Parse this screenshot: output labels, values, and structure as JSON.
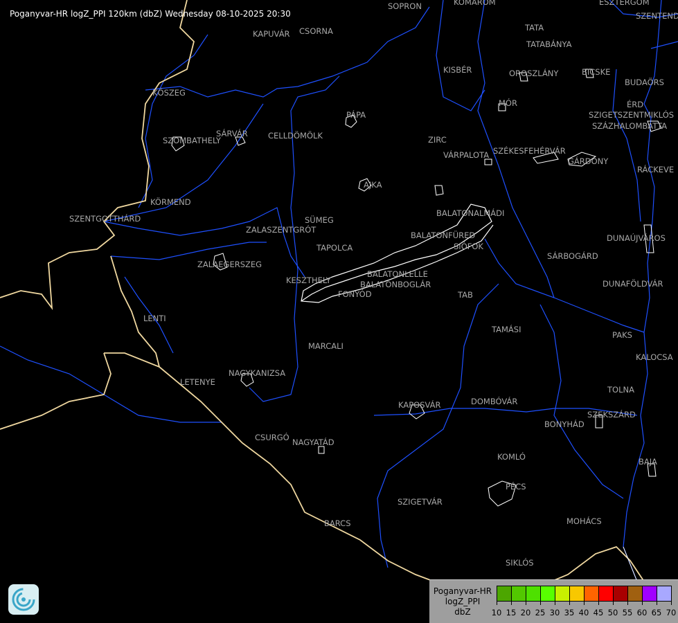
{
  "title": "Poganyvar-HR logZ_PPI 120km (dbZ) Wednesday 08-10-2025 20:30",
  "colors": {
    "background": "#000000",
    "river": "#1e50ff",
    "border": "#f0d8a0",
    "lake": "#ffffff",
    "town_label": "#a8a8a8",
    "town_outline": "#ffffff"
  },
  "towns": [
    "SOPRON",
    "KOMÁROM",
    "ESZTERGOM",
    "SZENTENDRE",
    "TATA",
    "TATABÁNYA",
    "KISBÉR",
    "OROSZLÁNY",
    "BICSKE",
    "BUDAÖRS",
    "KŐSZEG",
    "MÓR",
    "ÉRD",
    "SZIGETSZENTMIKLÓS",
    "SZÁZHALOMBATTA",
    "PÁPA",
    "KAPUVÁR",
    "CSORNA",
    "SÁRVÁR",
    "SZOMBATHELY",
    "CELLDÖMÖLK",
    "ZIRC",
    "VÁRPALOTA",
    "SZÉKESFEHÉRVÁR",
    "GÁRDONY",
    "RÁCKEVE",
    "AJKA",
    "KÖRMEND",
    "BALATONALMÁDI",
    "SZENTGOTTHÁRD",
    "SÜMEG",
    "ZALASZENTGRÓT",
    "BALATONFÜRED",
    "SIÓFOK",
    "DUNAÚJVÁROS",
    "TAPOLCA",
    "SÁRBOGÁRD",
    "ZALAEGERSZEG",
    "KESZTHELY",
    "BALATONLELLE",
    "BALATONBOGLÁR",
    "FONYÓD",
    "DUNAFÖLDVÁR",
    "TAB",
    "LENTI",
    "TAMÁSI",
    "PAKS",
    "MARCALI",
    "KALOCSA",
    "LETENYE",
    "NAGYKANIZSA",
    "TOLNA",
    "KAPOSVÁR",
    "DOMBÓVÁR",
    "SZEKSZÁRD",
    "BONYHÁD",
    "CSURGÓ",
    "NAGYATÁD",
    "KOMLÓ",
    "BAJA",
    "PÉCS",
    "SZIGETVÁR",
    "MOHÁCS",
    "BARCS",
    "SIKLÓS"
  ],
  "legend": {
    "line1": "Poganyvar-HR",
    "line2": "logZ_PPI",
    "line3": "dbZ",
    "ticks": [
      "10",
      "15",
      "20",
      "25",
      "30",
      "35",
      "40",
      "45",
      "50",
      "55",
      "60",
      "65",
      "70"
    ],
    "colors": [
      "#4ca600",
      "#52c800",
      "#4ee000",
      "#58ff00",
      "#c8f000",
      "#f8c800",
      "#ff6400",
      "#ff0000",
      "#a80000",
      "#a06010",
      "#a000ff",
      "#a8a8ff"
    ]
  },
  "logo": {
    "icon": "weather-service-logo"
  }
}
